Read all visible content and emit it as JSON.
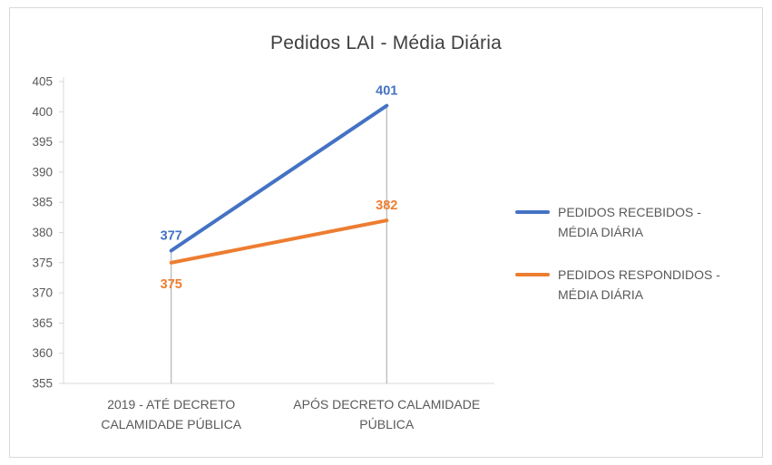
{
  "chart_data": {
    "type": "line",
    "title": "Pedidos LAI - Média Diária",
    "categories": [
      "2019 - ATÉ DECRETO CALAMIDADE PÚBLICA",
      "APÓS DECRETO CALAMIDADE PÚBLICA"
    ],
    "series": [
      {
        "name": "PEDIDOS RECEBIDOS - MÉDIA DIÁRIA",
        "values": [
          377,
          401
        ],
        "color": "#4472C4",
        "label_positions": [
          "above",
          "above"
        ]
      },
      {
        "name": "PEDIDOS RESPONDIDOS - MÉDIA DIÁRIA",
        "values": [
          375,
          382
        ],
        "color": "#ED7D31",
        "label_positions": [
          "below",
          "above"
        ]
      }
    ],
    "ylim": [
      355,
      405
    ],
    "yticks": [
      355,
      360,
      365,
      370,
      375,
      380,
      385,
      390,
      395,
      400,
      405
    ],
    "grid": false,
    "drop_lines": true,
    "legend_position": "right"
  },
  "colors": {
    "axis_line": "#D9D9D9",
    "drop_line": "#A6A6A6",
    "axis_text": "#595959",
    "title_text": "#404040"
  }
}
